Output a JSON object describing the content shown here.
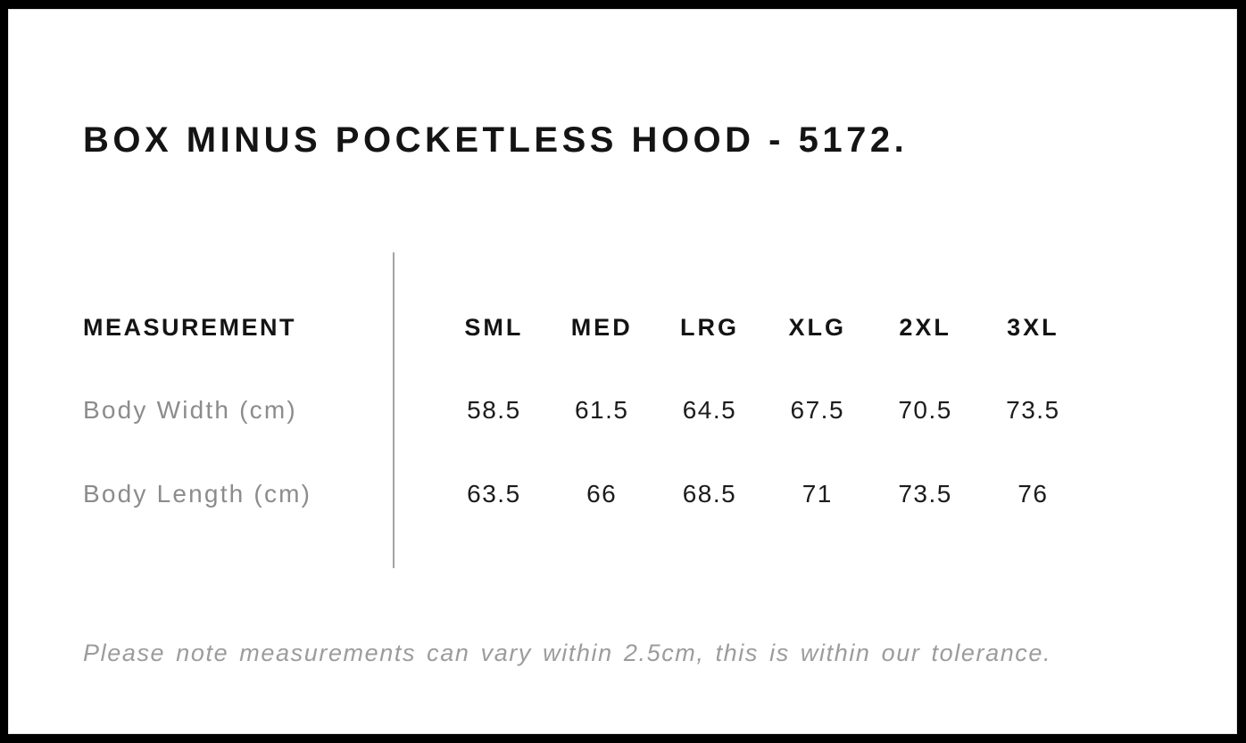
{
  "page": {
    "title": "BOX MINUS POCKETLESS HOOD - 5172.",
    "note": "Please note measurements can vary within 2.5cm, this is within our tolerance."
  },
  "size_chart": {
    "label_header": "MEASUREMENT",
    "size_headers": [
      "SML",
      "MED",
      "LRG",
      "XLG",
      "2XL",
      "3XL"
    ],
    "rows": [
      {
        "label": "Body Width (cm)",
        "values": [
          "58.5",
          "61.5",
          "64.5",
          "67.5",
          "70.5",
          "73.5"
        ]
      },
      {
        "label": "Body Length (cm)",
        "values": [
          "63.5",
          "66",
          "68.5",
          "71",
          "73.5",
          "76"
        ]
      }
    ]
  },
  "colors": {
    "frame_border": "#000000",
    "heading_text": "#141414",
    "value_text": "#1c1c1c",
    "label_gray": "#8c8c8c",
    "note_gray": "#9c9c9c",
    "divider_gray": "#a3a3a3"
  }
}
